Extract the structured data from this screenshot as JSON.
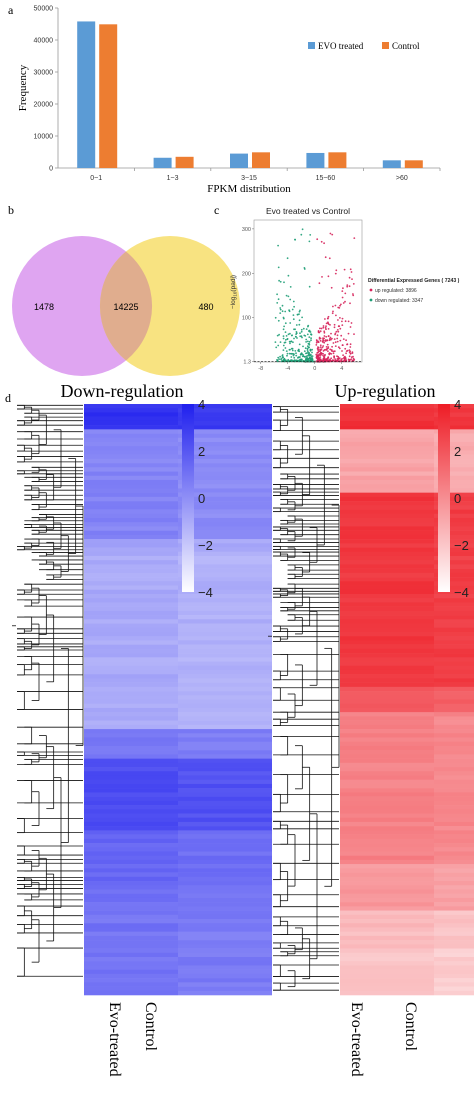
{
  "panels": {
    "a": "a",
    "b": "b",
    "c": "c",
    "d": "d"
  },
  "chart_data": [
    {
      "type": "bar",
      "panel": "a",
      "categories": [
        "0~1",
        "1~3",
        "3~15",
        "15~60",
        ">60"
      ],
      "series": [
        {
          "name": "EVO treated",
          "color": "#5b9bd5",
          "values": [
            45800,
            3200,
            4500,
            4700,
            2400
          ]
        },
        {
          "name": "Control",
          "color": "#ed7d31",
          "values": [
            44900,
            3500,
            4900,
            4900,
            2400
          ]
        }
      ],
      "xlabel": "FPKM distribution",
      "ylabel": "Frequency",
      "ylim": [
        0,
        50000
      ],
      "yticks": [
        "0",
        "10000",
        "20000",
        "30000",
        "40000",
        "50000"
      ],
      "legend_position": "top-right"
    },
    {
      "type": "venn",
      "panel": "b",
      "sets": [
        {
          "color": "#dda0f0"
        },
        {
          "color": "#f8e27a"
        }
      ],
      "values": {
        "left_only": "1478",
        "intersection": "14225",
        "right_only": "480"
      }
    },
    {
      "type": "scatter",
      "panel": "c",
      "title": "Evo treated vs Control",
      "ylabel_main": "−log",
      "ylabel_sub": "10",
      "ylabel_tail": "(padj)",
      "xticks": [
        "-8",
        "-4",
        "0",
        "4"
      ],
      "xtick_values": [
        -8,
        -4,
        0,
        4
      ],
      "yticks": [
        "1.3",
        "100",
        "200",
        "300"
      ],
      "ytick_values": [
        1.3,
        100,
        200,
        300
      ],
      "xlim": [
        -9,
        7
      ],
      "ylim": [
        0,
        320
      ],
      "threshold": 1.3,
      "legend_title": "Differential Expressed Genes ( 7243 )",
      "legend": [
        {
          "label": "up regulated: 3896",
          "color": "#d6245b"
        },
        {
          "label": "down regulated: 3347",
          "color": "#1f9e77"
        }
      ],
      "up_count": 3896,
      "down_count": 3347
    },
    {
      "type": "heatmap",
      "panel": "d",
      "title": "Down-regulation",
      "columns": [
        "Evo-treated",
        "Control"
      ],
      "colorbar_ticks": [
        "4",
        "2",
        "0",
        "−2",
        "−4"
      ],
      "colorbar_values": [
        4,
        2,
        0,
        -2,
        -4
      ],
      "scale": {
        "low": "#ffffff",
        "high": "#1f1fee"
      }
    },
    {
      "type": "heatmap",
      "panel": "d",
      "title": "Up-regulation",
      "columns": [
        "Evo-treated",
        "Control"
      ],
      "colorbar_ticks": [
        "4",
        "2",
        "0",
        "−2",
        "−4"
      ],
      "colorbar_values": [
        4,
        2,
        0,
        -2,
        -4
      ],
      "scale": {
        "low": "#ffffff",
        "high": "#ee1c25"
      }
    }
  ]
}
